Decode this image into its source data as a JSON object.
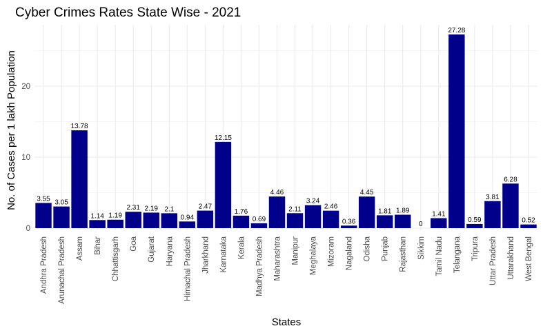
{
  "chart_data": {
    "type": "bar",
    "title": "Cyber Crimes Rates State Wise - 2021",
    "xlabel": "States",
    "ylabel": "No. of Cases per 1 lakh Population",
    "ylim": [
      0,
      29
    ],
    "yticks": [
      0,
      10,
      20
    ],
    "grid": true,
    "bar_color": "#00008b",
    "categories": [
      "Andhra Pradesh",
      "Arunachal Pradesh",
      "Assam",
      "Bihar",
      "Chhattisgarh",
      "Goa",
      "Gujarat",
      "Haryana",
      "Himachal Pradesh",
      "Jharkhand",
      "Karnataka",
      "Kerala",
      "Madhya Pradesh",
      "Maharashtra",
      "Manipur",
      "Meghalaya",
      "Mizoram",
      "Nagaland",
      "Odisha",
      "Punjab",
      "Rajasthan",
      "Sikkim",
      "Tamil Nadu",
      "Telangana",
      "Tripura",
      "Uttar Pradesh",
      "Uttarakhand",
      "West Bengal"
    ],
    "values": [
      3.55,
      3.05,
      13.78,
      1.14,
      1.19,
      2.31,
      2.19,
      2.1,
      0.94,
      2.47,
      12.15,
      1.76,
      0.69,
      4.46,
      2.11,
      3.24,
      2.46,
      0.36,
      4.45,
      1.81,
      1.89,
      0,
      1.41,
      27.28,
      0.59,
      3.81,
      6.28,
      0.52
    ]
  }
}
